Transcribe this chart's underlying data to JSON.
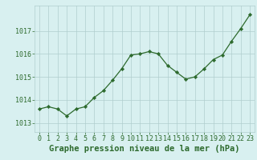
{
  "x": [
    0,
    1,
    2,
    3,
    4,
    5,
    6,
    7,
    8,
    9,
    10,
    11,
    12,
    13,
    14,
    15,
    16,
    17,
    18,
    19,
    20,
    21,
    22,
    23
  ],
  "y": [
    1013.6,
    1013.7,
    1013.6,
    1013.3,
    1013.6,
    1013.7,
    1014.1,
    1014.4,
    1014.85,
    1015.35,
    1015.95,
    1016.0,
    1016.1,
    1016.0,
    1015.5,
    1015.2,
    1014.9,
    1015.0,
    1015.35,
    1015.75,
    1015.95,
    1016.55,
    1017.1,
    1017.7
  ],
  "line_color": "#2d6a2d",
  "marker_color": "#2d6a2d",
  "bg_color": "#d8f0f0",
  "grid_color": "#b0cece",
  "label_color": "#2d6a2d",
  "xlabel": "Graphe pression niveau de la mer (hPa)",
  "ylabel_ticks": [
    1013,
    1014,
    1015,
    1016,
    1017
  ],
  "ylim": [
    1012.6,
    1018.1
  ],
  "xlim": [
    -0.5,
    23.5
  ],
  "xticks": [
    0,
    1,
    2,
    3,
    4,
    5,
    6,
    7,
    8,
    9,
    10,
    11,
    12,
    13,
    14,
    15,
    16,
    17,
    18,
    19,
    20,
    21,
    22,
    23
  ],
  "title_fontsize": 7.5,
  "tick_fontsize": 6.0
}
